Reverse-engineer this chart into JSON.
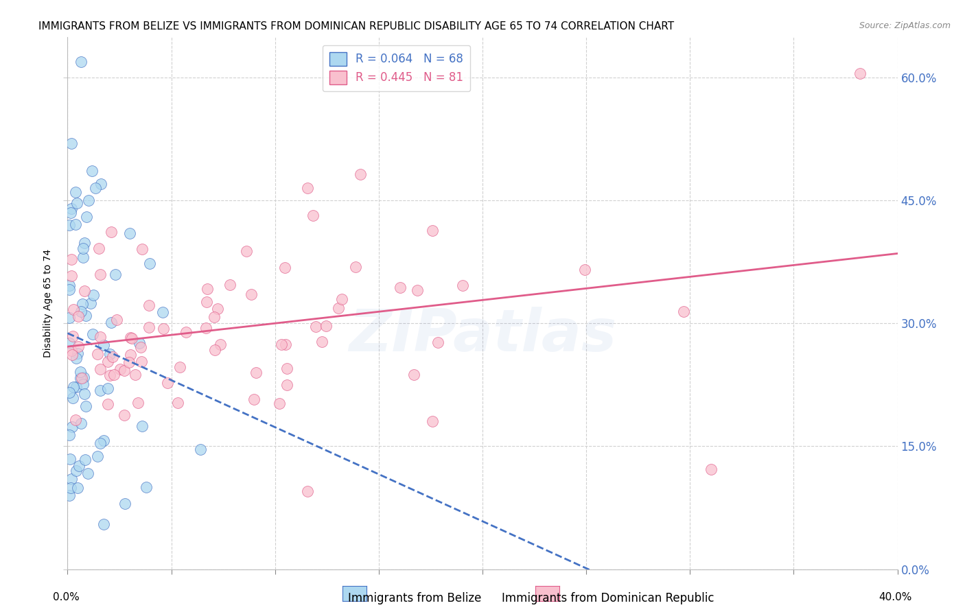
{
  "title": "IMMIGRANTS FROM BELIZE VS IMMIGRANTS FROM DOMINICAN REPUBLIC DISABILITY AGE 65 TO 74 CORRELATION CHART",
  "source": "Source: ZipAtlas.com",
  "ylabel": "Disability Age 65 to 74",
  "xlabel_belize": "Immigrants from Belize",
  "xlabel_dr": "Immigrants from Dominican Republic",
  "xmin": 0.0,
  "xmax": 0.4,
  "ymin": 0.0,
  "ymax": 0.65,
  "yticks": [
    0.0,
    0.15,
    0.3,
    0.45,
    0.6
  ],
  "belize_R": 0.064,
  "belize_N": 68,
  "dr_R": 0.445,
  "dr_N": 81,
  "belize_color": "#add8f0",
  "dr_color": "#f9c0ce",
  "belize_line_color": "#4472c4",
  "dr_line_color": "#e05c8a",
  "watermark": "ZIPatlas",
  "title_fontsize": 11,
  "axis_label_fontsize": 10,
  "tick_fontsize": 11,
  "legend_fontsize": 12
}
